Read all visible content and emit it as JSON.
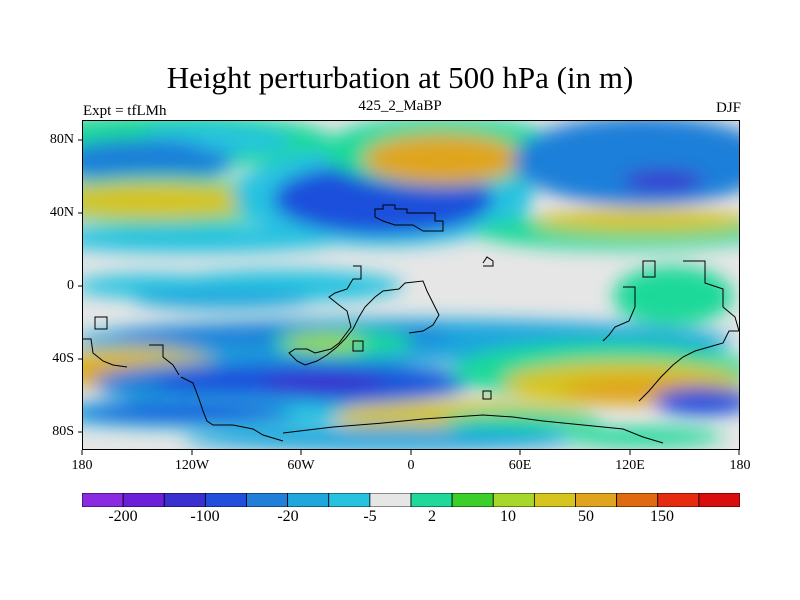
{
  "title": "Height perturbation at 500 hPa (in m)",
  "subtitle_left": "Expt = tfLMh",
  "subtitle_center": "425_2_MaBP",
  "subtitle_right": "DJF",
  "lat_labels": [
    "80N",
    "40N",
    "0",
    "40S",
    "80S"
  ],
  "lon_labels": [
    "180",
    "120W",
    "60W",
    "0",
    "60E",
    "120E",
    "180"
  ],
  "colorbar": {
    "colors": [
      "#8a2be2",
      "#6a1fd8",
      "#3a2fcf",
      "#1f4fdb",
      "#1f7fd9",
      "#1fa6dd",
      "#27c2e0",
      "#e6e6e6",
      "#1fd99a",
      "#3ccf2a",
      "#a6d82a",
      "#d6c41f",
      "#e0a51f",
      "#e06a10",
      "#e52a10",
      "#d90d0d"
    ],
    "labels": [
      "-200",
      "-100",
      "-20",
      "-5",
      "2",
      "10",
      "50",
      "150"
    ]
  },
  "field_colors": {
    "land_outline": "#000000",
    "neutral": "#e6e6e6"
  }
}
